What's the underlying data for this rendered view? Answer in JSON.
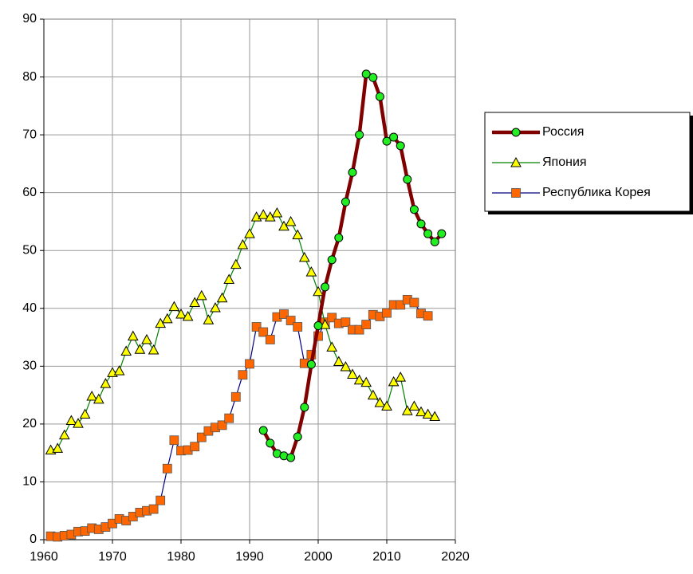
{
  "chart_data": {
    "type": "line",
    "x": [
      1961,
      1962,
      1963,
      1964,
      1965,
      1966,
      1967,
      1968,
      1969,
      1970,
      1971,
      1972,
      1973,
      1974,
      1975,
      1976,
      1977,
      1978,
      1979,
      1980,
      1981,
      1982,
      1983,
      1984,
      1985,
      1986,
      1987,
      1988,
      1989,
      1990,
      1991,
      1992,
      1993,
      1994,
      1995,
      1996,
      1997,
      1998,
      1999,
      2000,
      2001,
      2002,
      2003,
      2004,
      2005,
      2006,
      2007,
      2008,
      2009,
      2010,
      2011,
      2012,
      2013,
      2014,
      2015,
      2016,
      2017,
      2018
    ],
    "series": [
      {
        "name": "Россия",
        "color": "#800000",
        "marker": "circle",
        "marker_color": "#22ee22",
        "values": [
          null,
          null,
          null,
          null,
          null,
          null,
          null,
          null,
          null,
          null,
          null,
          null,
          null,
          null,
          null,
          null,
          null,
          null,
          null,
          null,
          null,
          null,
          null,
          null,
          null,
          null,
          null,
          null,
          null,
          null,
          null,
          18.9,
          16.7,
          14.9,
          14.5,
          14.2,
          17.8,
          22.9,
          30.3,
          37,
          43.7,
          48.4,
          52.2,
          58.4,
          63.5,
          70,
          80.5,
          79.9,
          76.6,
          68.9,
          69.6,
          68.1,
          62.3,
          57.1,
          54.6,
          52.9,
          51.5,
          52.9
        ]
      },
      {
        "name": "Япония",
        "color": "#008000",
        "marker": "triangle",
        "marker_color": "#ffff00",
        "values": [
          15.5,
          15.8,
          18.1,
          20.6,
          20.1,
          21.7,
          24.8,
          24.3,
          27,
          28.9,
          29.2,
          32.6,
          35.2,
          32.9,
          34.6,
          32.8,
          37.4,
          38.2,
          40.3,
          39,
          38.6,
          41,
          42.2,
          38,
          40.1,
          41.8,
          45,
          47.6,
          51,
          52.9,
          55.8,
          56.2,
          55.8,
          56.5,
          54.2,
          55,
          52.7,
          48.8,
          46.3,
          42.9,
          37.2,
          33.3,
          30.8,
          29.9,
          28.6,
          27.6,
          27.2,
          25,
          23.7,
          23.1,
          27.3,
          28.1,
          22.3,
          23.1,
          22.1,
          21.7,
          21.3,
          null
        ]
      },
      {
        "name": "Республика Корея",
        "color": "#000080",
        "marker": "square",
        "marker_color": "#ff6600",
        "values": [
          0.6,
          0.5,
          0.7,
          0.9,
          1.4,
          1.5,
          2,
          1.8,
          2.2,
          2.8,
          3.6,
          3.3,
          4,
          4.7,
          5,
          5.3,
          6.8,
          12.3,
          17.2,
          15.4,
          15.5,
          16.1,
          17.7,
          18.8,
          19.4,
          19.8,
          21,
          24.7,
          28.5,
          30.4,
          36.8,
          35.9,
          34.6,
          38.5,
          39,
          37.9,
          36.8,
          30.5,
          32,
          35.2,
          37.6,
          38.4,
          37.4,
          37.6,
          36.3,
          36.3,
          37.2,
          38.9,
          38.6,
          39.2,
          40.6,
          40.6,
          41.5,
          41,
          39.1,
          38.7,
          null,
          null
        ]
      }
    ],
    "xlim": [
      1960,
      2020
    ],
    "xticks": [
      1960,
      1970,
      1980,
      1990,
      2000,
      2010,
      2020
    ],
    "ylim": [
      0,
      90
    ],
    "yticks": [
      0,
      10,
      20,
      30,
      40,
      50,
      60,
      70,
      80,
      90
    ],
    "grid": true,
    "legend": "right"
  }
}
